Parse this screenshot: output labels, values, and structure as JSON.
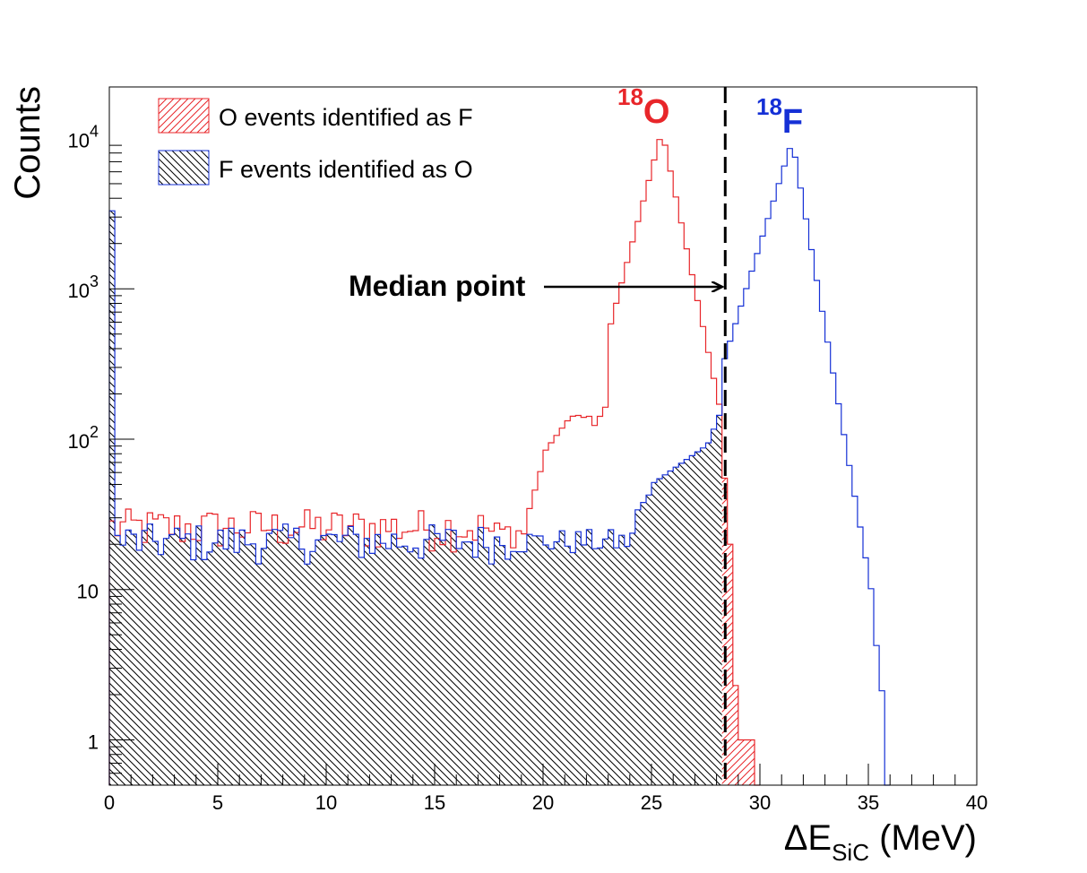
{
  "chart_data": {
    "type": "histogram",
    "xlabel": {
      "prefix": "ΔE",
      "subscript": "SiC",
      "suffix": " (MeV)"
    },
    "ylabel": "Counts",
    "xlim": [
      0,
      40
    ],
    "ylim": [
      0.5,
      22000
    ],
    "yscale": "log",
    "x_ticks": [
      0,
      5,
      10,
      15,
      20,
      25,
      30,
      35,
      40
    ],
    "y_ticks": [
      {
        "value": 1,
        "base": "1",
        "exp": ""
      },
      {
        "value": 10,
        "base": "10",
        "exp": ""
      },
      {
        "value": 100,
        "base": "10",
        "exp": "2"
      },
      {
        "value": 1000,
        "base": "10",
        "exp": "3"
      },
      {
        "value": 10000,
        "base": "10",
        "exp": "4"
      }
    ],
    "bin_width": 0.25,
    "median_cut_x": 28.4,
    "series": [
      {
        "name": "O events identified as F",
        "color": "#e8262a",
        "hatch": "forward-diagonal",
        "hist_range": [
          0,
          30
        ],
        "segments": [
          {
            "x": [
              0,
              17.5
            ],
            "mode": "flat",
            "level": 26,
            "jitter": 0.32
          },
          {
            "x": [
              17.5,
              19.25
            ],
            "mode": "flat",
            "level": 24,
            "jitter": 0.22
          },
          {
            "x": [
              19.25,
              20.0
            ],
            "mode": "ramp",
            "from": 30,
            "to": 70
          },
          {
            "x": [
              20.0,
              21.25
            ],
            "mode": "ramp",
            "from": 80,
            "to": 140
          },
          {
            "x": [
              21.25,
              22.25
            ],
            "mode": "flat",
            "level": 142,
            "jitter": 0.04
          },
          {
            "x": [
              22.25,
              23.0
            ],
            "mode": "ramp",
            "from": 115,
            "to": 175
          },
          {
            "x": [
              23.0,
              25.5
            ],
            "mode": "ramp",
            "from": 500,
            "to": 11500
          },
          {
            "x": [
              25.5,
              28.25
            ],
            "mode": "ramp",
            "from": 11000,
            "to": 140
          },
          {
            "x": [
              28.25,
              28.5
            ],
            "mode": "flat",
            "level": 55,
            "jitter": 0
          },
          {
            "x": [
              28.5,
              28.75
            ],
            "mode": "flat",
            "level": 20,
            "jitter": 0
          },
          {
            "x": [
              28.75,
              29.0
            ],
            "mode": "flat",
            "level": 2.3,
            "jitter": 0
          },
          {
            "x": [
              29.0,
              29.75
            ],
            "mode": "flat",
            "level": 1.0,
            "jitter": 0
          }
        ]
      },
      {
        "name": "F events identified as O",
        "color": "#1530d6",
        "hatch": "back-diagonal",
        "hist_range": [
          0,
          36
        ],
        "segments": [
          {
            "x": [
              0,
              0.25
            ],
            "mode": "flat",
            "level": 3300,
            "jitter": 0
          },
          {
            "x": [
              0.25,
              18.5
            ],
            "mode": "flat",
            "level": 21,
            "jitter": 0.3
          },
          {
            "x": [
              18.5,
              24.25
            ],
            "mode": "flat",
            "level": 21,
            "jitter": 0.2
          },
          {
            "x": [
              24.25,
              25.0
            ],
            "mode": "ramp",
            "from": 32,
            "to": 45
          },
          {
            "x": [
              25.0,
              27.5
            ],
            "mode": "ramp",
            "from": 50,
            "to": 90
          },
          {
            "x": [
              27.5,
              28.25
            ],
            "mode": "ramp",
            "from": 85,
            "to": 160
          },
          {
            "x": [
              28.25,
              31.5
            ],
            "mode": "ramp",
            "from": 300,
            "to": 9800
          },
          {
            "x": [
              31.5,
              35.25
            ],
            "mode": "ramp",
            "from": 9500,
            "to": 8
          },
          {
            "x": [
              35.25,
              35.75
            ],
            "mode": "ramp",
            "from": 6,
            "to": 1.5
          }
        ]
      }
    ],
    "legend": {
      "placement": "top-left"
    },
    "annotations": {
      "median_text": "Median point",
      "peak_o": {
        "mass": "18",
        "symbol": "O",
        "color": "#e8262a"
      },
      "peak_f": {
        "mass": "18",
        "symbol": "F",
        "color": "#1530d6"
      }
    }
  }
}
